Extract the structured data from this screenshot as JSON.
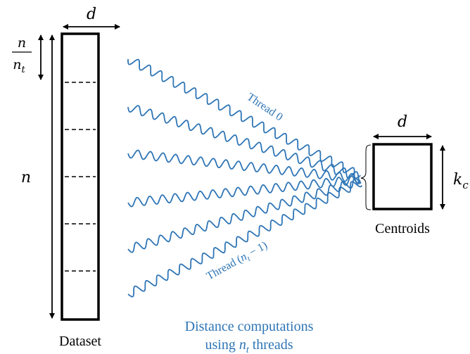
{
  "dataset": {
    "width_label": "d",
    "chunk_label_numerator": "n",
    "chunk_label_denominator": "n",
    "chunk_label_denominator_sub": "t",
    "height_label": "n",
    "caption": "Dataset",
    "chunk_count": 6
  },
  "centroids": {
    "width_label": "d",
    "height_label": "k",
    "height_label_sub": "c",
    "caption": "Centroids"
  },
  "threads": {
    "first_label": "Thread 0",
    "last_label_prefix": "Thread (",
    "last_label_var": "n",
    "last_label_sub": "t",
    "last_label_suffix": " − 1)",
    "count": 6
  },
  "description": {
    "line1": "Distance computations",
    "line2_prefix": "using ",
    "line2_var": "n",
    "line2_sub": "t",
    "line2_suffix": " threads"
  },
  "colors": {
    "thread": "#2e75b6",
    "outline": "#000000"
  }
}
